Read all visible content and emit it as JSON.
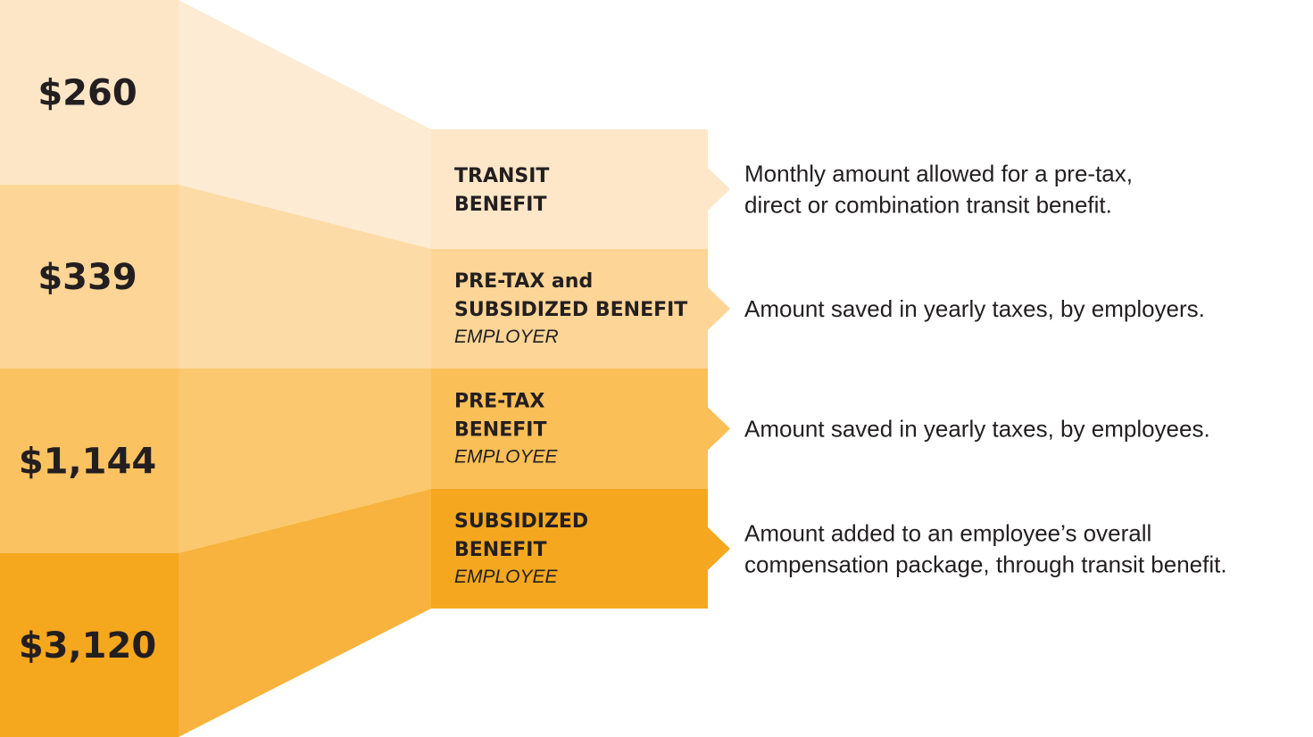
{
  "items": [
    {
      "amount": "$260",
      "title": [
        "TRANSIT",
        "BENEFIT"
      ],
      "description": [
        "Monthly amount allowed for a pre-tax,",
        "direct or combination transit benefit."
      ]
    },
    {
      "amount": "$339",
      "title": [
        "PRE-TAX and",
        "SUBSIDIZED BENEFIT"
      ],
      "subtitle": "EMPLOYER",
      "description": [
        "Amount saved in yearly taxes, by employers."
      ]
    },
    {
      "amount": "$1,144",
      "title": [
        "PRE-TAX",
        "BENEFIT"
      ],
      "subtitle": "EMPLOYEE",
      "description": [
        "Amount saved in yearly taxes, by employees."
      ]
    },
    {
      "amount": "$3,120",
      "title": [
        "SUBSIDIZED",
        "BENEFIT"
      ],
      "subtitle": "EMPLOYEE",
      "description": [
        "Amount added to an employee’s overall",
        "compensation package, through transit benefit."
      ]
    }
  ]
}
